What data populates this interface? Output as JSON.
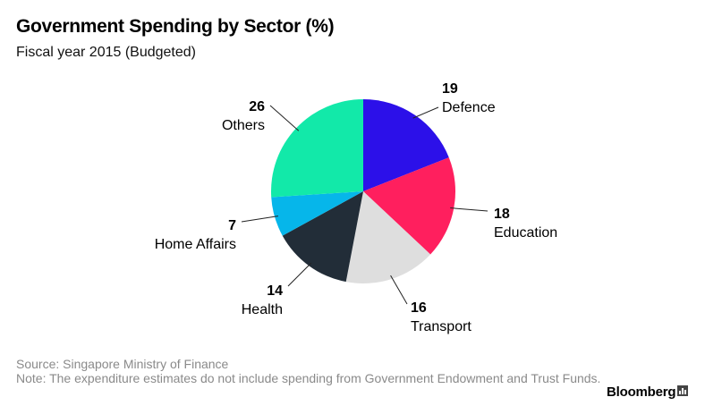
{
  "title": "Government Spending by Sector (%)",
  "subtitle": "Fiscal year 2015 (Budgeted)",
  "source_line": "Source: Singapore Ministry of Finance",
  "note_line": "Note: The expenditure estimates do not include spending from Government Endowment and Trust Funds.",
  "brand": "Bloomberg",
  "brand_icon": "bloomberg-terminal-icon",
  "chart_data": {
    "type": "pie",
    "title": "Government Spending by Sector (%)",
    "subtitle": "Fiscal year 2015 (Budgeted)",
    "start_angle": "12 o'clock",
    "direction": "clockwise",
    "slices": [
      {
        "label": "Defence",
        "value": 19,
        "color": "#2c10e9"
      },
      {
        "label": "Education",
        "value": 18,
        "color": "#ff1f5e"
      },
      {
        "label": "Transport",
        "value": 16,
        "color": "#dedede"
      },
      {
        "label": "Health",
        "value": 14,
        "color": "#222d38"
      },
      {
        "label": "Home Affairs",
        "value": 7,
        "color": "#06b6ea"
      },
      {
        "label": "Others",
        "value": 26,
        "color": "#12e9a9"
      }
    ]
  }
}
